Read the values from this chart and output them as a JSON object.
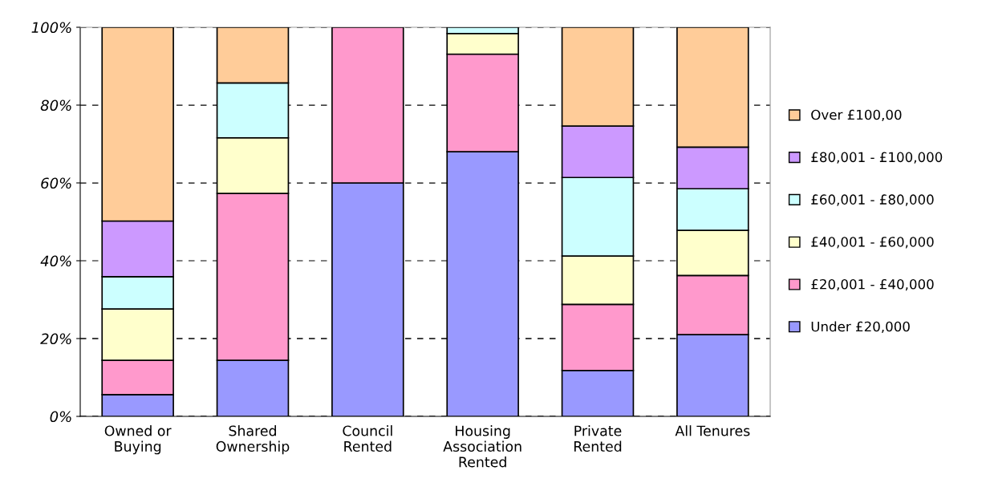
{
  "chart_data": {
    "type": "bar",
    "stacked": true,
    "categories": [
      "Owned or\nBuying",
      "Shared\nOwnership",
      "Council\nRented",
      "Housing\nAssociation\nRented",
      "Private\nRented",
      "All Tenures"
    ],
    "series": [
      {
        "name": "Under £20,000",
        "color": "#9999ff",
        "values": [
          5.6,
          14.4,
          60,
          68.0,
          11.8,
          21.0
        ]
      },
      {
        "name": "£20,001 - £40,000",
        "color": "#ff99cc",
        "values": [
          8.8,
          42.9,
          40,
          25.1,
          17.0,
          15.2
        ]
      },
      {
        "name": "£40,001 - £60,000",
        "color": "#ffffcc",
        "values": [
          13.2,
          14.3,
          null,
          5.3,
          12.4,
          11.6
        ]
      },
      {
        "name": "£60,001 - £80,000",
        "color": "#ccffff",
        "values": [
          8.3,
          14.1,
          null,
          1.6,
          20.2,
          10.7
        ]
      },
      {
        "name": "£80,001 - £100,000",
        "color": "#cc99ff",
        "values": [
          14.3,
          null,
          null,
          null,
          13.2,
          10.7
        ]
      },
      {
        "name": "Over £100,00",
        "color": "#ffcc99",
        "values": [
          49.8,
          14.3,
          null,
          null,
          25.4,
          30.8
        ]
      }
    ],
    "ylim": [
      0,
      100
    ],
    "yticks": [
      {
        "value": 0,
        "label": "0%"
      },
      {
        "value": 20,
        "label": "20%"
      },
      {
        "value": 40,
        "label": "40%"
      },
      {
        "value": 60,
        "label": "60%"
      },
      {
        "value": 80,
        "label": "80%"
      },
      {
        "value": 100,
        "label": "100%"
      }
    ],
    "grid": "y",
    "legend": "right"
  }
}
